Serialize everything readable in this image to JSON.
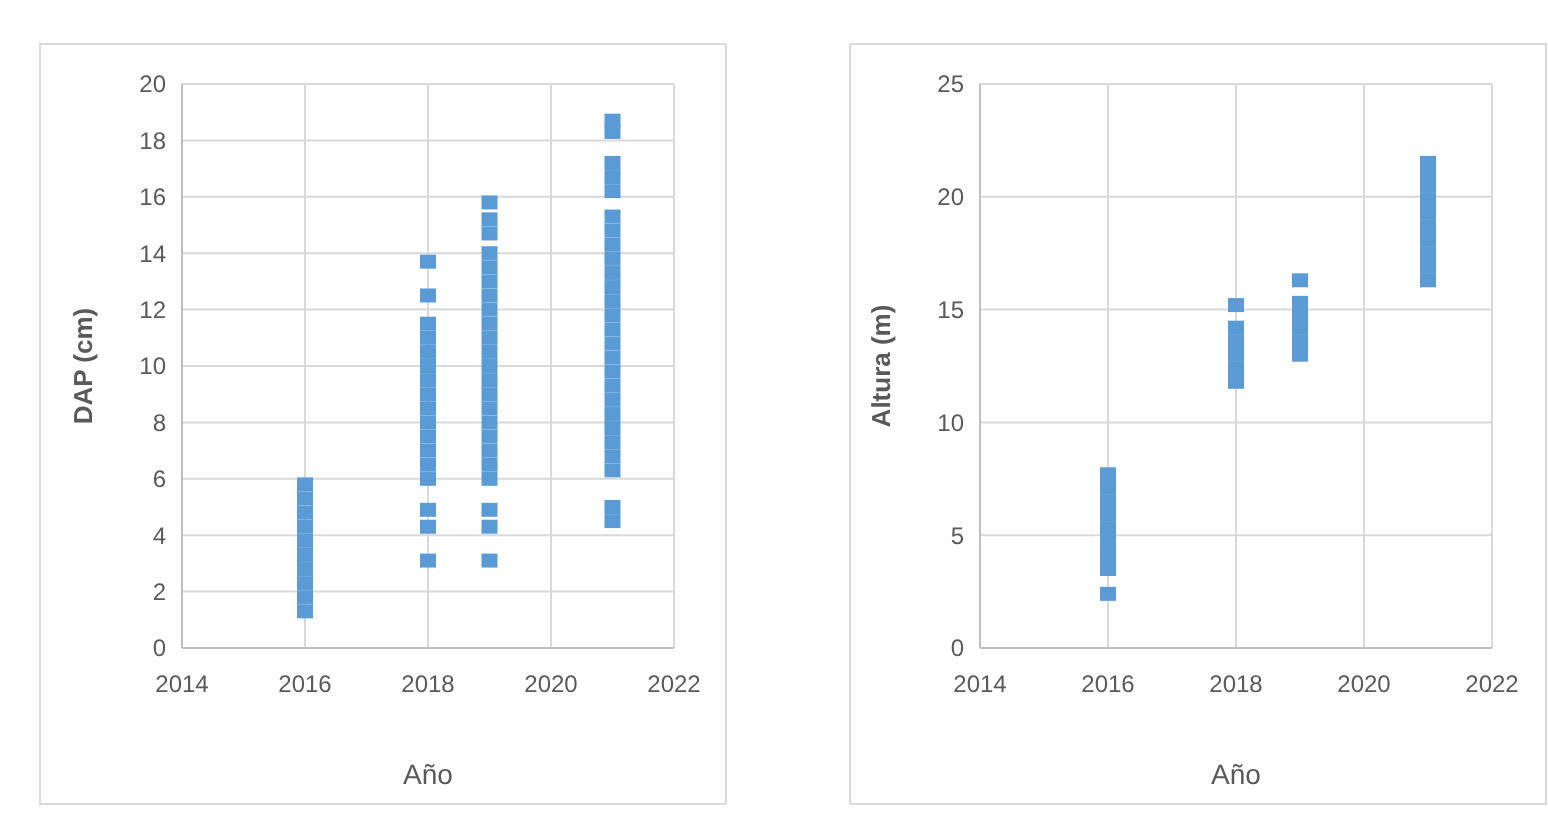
{
  "chart_data": [
    {
      "type": "scatter",
      "xlabel": "Año",
      "ylabel": "DAP (cm)",
      "xlim": [
        2014,
        2022
      ],
      "xticks": [
        2014,
        2016,
        2018,
        2020,
        2022
      ],
      "ylim": [
        0,
        20
      ],
      "yticks": [
        0,
        2,
        4,
        6,
        8,
        10,
        12,
        14,
        16,
        18,
        20
      ],
      "grid": true,
      "marker": "square",
      "series": [
        {
          "color": "#5b9bd5",
          "x": [
            2016,
            2016,
            2016,
            2016,
            2016,
            2016,
            2016,
            2016,
            2016,
            2016
          ],
          "values": [
            1.3,
            1.8,
            2.3,
            2.8,
            3.3,
            3.8,
            4.3,
            4.8,
            5.3,
            5.8
          ]
        },
        {
          "color": "#5b9bd5",
          "x": [
            2018,
            2018,
            2018,
            2018,
            2018,
            2018,
            2018,
            2018,
            2018,
            2018,
            2018,
            2018,
            2018,
            2018,
            2018,
            2018,
            2018
          ],
          "values": [
            3.1,
            4.3,
            4.9,
            6.0,
            6.5,
            7.0,
            7.5,
            8.0,
            8.5,
            9.0,
            9.5,
            10.0,
            10.5,
            11.0,
            11.5,
            12.5,
            13.7
          ]
        },
        {
          "color": "#5b9bd5",
          "x": [
            2019,
            2019,
            2019,
            2019,
            2019,
            2019,
            2019,
            2019,
            2019,
            2019,
            2019,
            2019,
            2019,
            2019,
            2019,
            2019,
            2019,
            2019,
            2019,
            2019,
            2019,
            2019,
            2019
          ],
          "values": [
            3.1,
            4.3,
            4.9,
            6.0,
            6.5,
            7.0,
            7.5,
            8.0,
            8.5,
            9.0,
            9.5,
            10.0,
            10.5,
            11.0,
            11.5,
            12.0,
            12.5,
            13.0,
            13.5,
            14.0,
            14.7,
            15.2,
            15.8
          ]
        },
        {
          "color": "#5b9bd5",
          "x": [
            2021,
            2021,
            2021,
            2021,
            2021,
            2021,
            2021,
            2021,
            2021,
            2021,
            2021,
            2021,
            2021,
            2021,
            2021,
            2021,
            2021,
            2021,
            2021,
            2021,
            2021,
            2021,
            2021,
            2021,
            2021,
            2021
          ],
          "values": [
            4.5,
            5.0,
            6.3,
            6.8,
            7.3,
            7.8,
            8.3,
            8.8,
            9.3,
            9.8,
            10.3,
            10.8,
            11.3,
            11.8,
            12.3,
            12.8,
            13.3,
            13.8,
            14.3,
            14.8,
            15.3,
            16.2,
            16.7,
            17.2,
            18.3,
            18.7
          ]
        }
      ]
    },
    {
      "type": "scatter",
      "xlabel": "Año",
      "ylabel": "Altura (m)",
      "xlim": [
        2014,
        2022
      ],
      "xticks": [
        2014,
        2016,
        2018,
        2020,
        2022
      ],
      "ylim": [
        0,
        25
      ],
      "yticks": [
        0,
        5,
        10,
        15,
        20,
        25
      ],
      "grid": true,
      "marker": "square",
      "series": [
        {
          "color": "#5b9bd5",
          "x": [
            2016,
            2016,
            2016,
            2016,
            2016,
            2016,
            2016,
            2016,
            2016
          ],
          "values": [
            2.4,
            3.5,
            4.1,
            4.7,
            5.3,
            5.9,
            6.5,
            7.1,
            7.7
          ]
        },
        {
          "color": "#5b9bd5",
          "x": [
            2018,
            2018,
            2018,
            2018,
            2018,
            2018
          ],
          "values": [
            11.8,
            12.4,
            13.0,
            13.6,
            14.2,
            15.2
          ]
        },
        {
          "color": "#5b9bd5",
          "x": [
            2019,
            2019,
            2019,
            2019,
            2019,
            2019
          ],
          "values": [
            13.0,
            13.6,
            14.2,
            14.8,
            15.3,
            16.3
          ]
        },
        {
          "color": "#5b9bd5",
          "x": [
            2021,
            2021,
            2021,
            2021,
            2021,
            2021,
            2021,
            2021,
            2021,
            2021
          ],
          "values": [
            16.3,
            16.9,
            17.5,
            18.1,
            18.7,
            19.3,
            19.9,
            20.5,
            21.1,
            21.5
          ]
        }
      ]
    }
  ]
}
